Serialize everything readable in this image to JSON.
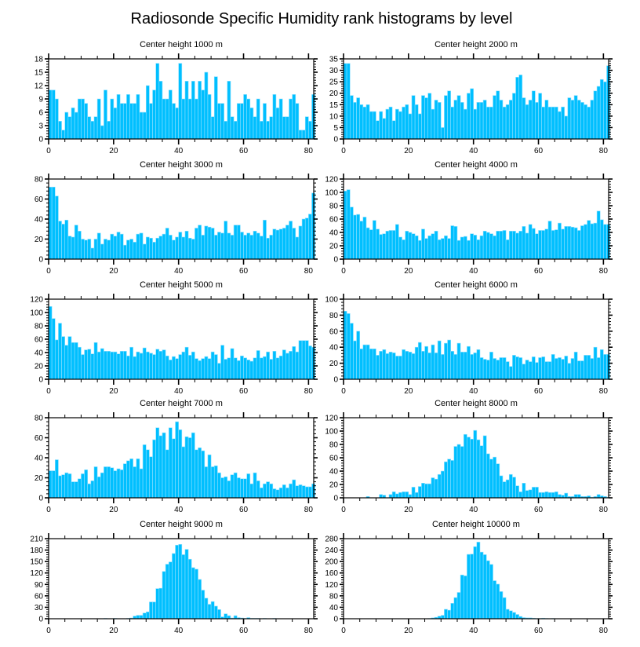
{
  "title": "Radiosonde Specific Humidity rank histograms by level",
  "chart_data": [
    {
      "type": "bar",
      "title": "Center height 1000 m",
      "xlim": [
        0,
        81.6
      ],
      "ylim": [
        0,
        18
      ],
      "yticks": [
        0,
        3,
        6,
        9,
        12,
        15,
        18
      ],
      "xticks": [
        0,
        20,
        40,
        60,
        80
      ],
      "values": [
        11,
        11,
        9,
        4,
        2,
        6,
        5,
        7,
        6,
        9,
        9,
        8,
        5,
        4,
        5,
        9,
        3,
        11,
        4,
        9,
        7,
        10,
        8,
        8,
        10,
        8,
        8,
        10,
        6,
        6,
        12,
        8,
        11,
        17,
        13,
        9,
        9,
        11,
        8,
        7,
        17,
        9,
        13,
        9,
        13,
        9,
        13,
        11,
        15,
        10,
        5,
        14,
        8,
        8,
        4,
        13,
        5,
        4,
        8,
        8,
        10,
        9,
        7,
        5,
        9,
        4,
        8,
        4,
        5,
        10,
        7,
        9,
        5,
        5,
        9,
        10,
        8,
        2,
        2,
        5,
        4,
        10
      ]
    },
    {
      "type": "bar",
      "title": "Center height 2000 m",
      "xlim": [
        0,
        81.6
      ],
      "ylim": [
        0,
        35
      ],
      "yticks": [
        0,
        5,
        10,
        15,
        20,
        25,
        30,
        35
      ],
      "xticks": [
        0,
        20,
        40,
        60,
        80
      ],
      "values": [
        33,
        33,
        19,
        16,
        18,
        15,
        14,
        15,
        12,
        12,
        8,
        12,
        9,
        13,
        14,
        8,
        13,
        12,
        14,
        15,
        11,
        19,
        15,
        11,
        19,
        18,
        20,
        13,
        17,
        16,
        5,
        19,
        21,
        14,
        17,
        19,
        16,
        13,
        20,
        22,
        13,
        16,
        16,
        17,
        14,
        14,
        19,
        21,
        17,
        14,
        15,
        17,
        20,
        27,
        28,
        18,
        15,
        17,
        21,
        16,
        20,
        14,
        17,
        14,
        14,
        14,
        12,
        14,
        10,
        18,
        17,
        19,
        17,
        16,
        15,
        14,
        17,
        21,
        23,
        26,
        25,
        32
      ]
    },
    {
      "type": "bar",
      "title": "Center height 3000 m",
      "xlim": [
        0,
        81.6
      ],
      "ylim": [
        0,
        80
      ],
      "yticks": [
        0,
        20,
        40,
        60,
        80
      ],
      "xticks": [
        0,
        20,
        40,
        60,
        80
      ],
      "values": [
        72,
        72,
        63,
        38,
        35,
        39,
        23,
        22,
        34,
        28,
        20,
        19,
        20,
        11,
        20,
        26,
        15,
        20,
        19,
        25,
        23,
        27,
        25,
        14,
        19,
        20,
        17,
        25,
        26,
        15,
        22,
        21,
        17,
        21,
        23,
        25,
        31,
        24,
        19,
        22,
        27,
        22,
        28,
        21,
        20,
        31,
        34,
        24,
        33,
        32,
        31,
        24,
        27,
        26,
        38,
        26,
        24,
        34,
        34,
        27,
        24,
        26,
        24,
        28,
        26,
        23,
        39,
        21,
        24,
        30,
        29,
        30,
        31,
        34,
        38,
        31,
        22,
        33,
        40,
        41,
        45,
        66
      ]
    },
    {
      "type": "bar",
      "title": "Center height 4000 m",
      "xlim": [
        0,
        81.6
      ],
      "ylim": [
        0,
        120
      ],
      "yticks": [
        0,
        20,
        40,
        60,
        80,
        100,
        120
      ],
      "xticks": [
        0,
        20,
        40,
        60,
        80
      ],
      "values": [
        102,
        104,
        78,
        66,
        67,
        57,
        63,
        47,
        44,
        58,
        45,
        37,
        38,
        42,
        43,
        43,
        52,
        33,
        29,
        42,
        40,
        38,
        35,
        28,
        45,
        31,
        35,
        38,
        42,
        29,
        31,
        35,
        31,
        50,
        49,
        28,
        33,
        34,
        28,
        38,
        36,
        29,
        35,
        42,
        40,
        38,
        35,
        42,
        42,
        43,
        29,
        42,
        42,
        39,
        42,
        49,
        39,
        52,
        46,
        38,
        43,
        43,
        45,
        57,
        43,
        44,
        54,
        45,
        49,
        49,
        48,
        47,
        43,
        50,
        52,
        58,
        53,
        54,
        72,
        59,
        52,
        52
      ]
    },
    {
      "type": "bar",
      "title": "Center height 5000 m",
      "xlim": [
        0,
        81.6
      ],
      "ylim": [
        0,
        120
      ],
      "yticks": [
        0,
        20,
        40,
        60,
        80,
        100,
        120
      ],
      "xticks": [
        0,
        20,
        40,
        60,
        80
      ],
      "values": [
        109,
        91,
        59,
        84,
        64,
        51,
        64,
        55,
        55,
        48,
        37,
        44,
        45,
        38,
        55,
        41,
        46,
        42,
        42,
        41,
        41,
        38,
        42,
        42,
        35,
        48,
        34,
        41,
        39,
        47,
        41,
        39,
        37,
        45,
        42,
        44,
        35,
        29,
        34,
        31,
        37,
        41,
        48,
        36,
        41,
        31,
        28,
        31,
        34,
        31,
        41,
        37,
        24,
        51,
        30,
        32,
        46,
        32,
        28,
        35,
        32,
        29,
        27,
        32,
        43,
        32,
        34,
        41,
        30,
        42,
        32,
        35,
        44,
        39,
        42,
        49,
        41,
        58,
        58,
        58,
        50,
        48
      ]
    },
    {
      "type": "bar",
      "title": "Center height 6000 m",
      "xlim": [
        0,
        81.6
      ],
      "ylim": [
        0,
        100
      ],
      "yticks": [
        0,
        20,
        40,
        60,
        80,
        100
      ],
      "xticks": [
        0,
        20,
        40,
        60,
        80
      ],
      "values": [
        85,
        82,
        70,
        48,
        60,
        38,
        43,
        43,
        38,
        38,
        30,
        35,
        37,
        32,
        34,
        33,
        29,
        29,
        37,
        35,
        34,
        32,
        40,
        46,
        35,
        41,
        33,
        43,
        33,
        48,
        31,
        45,
        49,
        35,
        31,
        45,
        34,
        34,
        41,
        31,
        33,
        37,
        27,
        25,
        24,
        34,
        26,
        24,
        27,
        27,
        22,
        16,
        30,
        28,
        27,
        19,
        24,
        22,
        28,
        21,
        27,
        28,
        22,
        22,
        31,
        26,
        27,
        25,
        29,
        20,
        26,
        34,
        23,
        23,
        30,
        30,
        26,
        40,
        27,
        37,
        31,
        31
      ]
    },
    {
      "type": "bar",
      "title": "Center height 7000 m",
      "xlim": [
        0,
        81.6
      ],
      "ylim": [
        0,
        80
      ],
      "yticks": [
        0,
        20,
        40,
        60,
        80
      ],
      "xticks": [
        0,
        20,
        40,
        60,
        80
      ],
      "values": [
        27,
        27,
        38,
        22,
        23,
        25,
        24,
        16,
        16,
        19,
        24,
        28,
        14,
        17,
        31,
        21,
        25,
        31,
        31,
        30,
        27,
        29,
        28,
        34,
        37,
        39,
        31,
        39,
        29,
        53,
        48,
        41,
        58,
        70,
        62,
        65,
        48,
        70,
        59,
        76,
        68,
        51,
        61,
        60,
        65,
        48,
        50,
        47,
        31,
        43,
        31,
        32,
        25,
        20,
        21,
        17,
        23,
        25,
        20,
        19,
        19,
        24,
        14,
        25,
        17,
        10,
        14,
        16,
        14,
        9,
        8,
        10,
        13,
        10,
        14,
        18,
        12,
        13,
        12,
        11,
        11,
        14
      ]
    },
    {
      "type": "bar",
      "title": "Center height 8000 m",
      "xlim": [
        0,
        81.6
      ],
      "ylim": [
        0,
        120
      ],
      "yticks": [
        0,
        20,
        40,
        60,
        80,
        100,
        120
      ],
      "xticks": [
        0,
        20,
        40,
        60,
        80
      ],
      "values": [
        0,
        0,
        0,
        0,
        0,
        0,
        0,
        2,
        0,
        0,
        0,
        5,
        4,
        0,
        5,
        9,
        6,
        8,
        9,
        9,
        5,
        16,
        8,
        17,
        22,
        21,
        21,
        30,
        28,
        35,
        40,
        54,
        58,
        56,
        77,
        80,
        77,
        95,
        91,
        88,
        101,
        87,
        78,
        93,
        66,
        58,
        61,
        51,
        33,
        24,
        27,
        35,
        31,
        18,
        9,
        22,
        11,
        12,
        16,
        16,
        8,
        8,
        9,
        8,
        8,
        9,
        5,
        4,
        7,
        2,
        2,
        5,
        5,
        2,
        2,
        3,
        1,
        2,
        5,
        3,
        2,
        1
      ]
    },
    {
      "type": "bar",
      "title": "Center height 9000 m",
      "xlim": [
        0,
        81.6
      ],
      "ylim": [
        0,
        210
      ],
      "yticks": [
        0,
        30,
        60,
        90,
        120,
        150,
        180,
        210
      ],
      "xticks": [
        0,
        20,
        40,
        60,
        80
      ],
      "values": [
        0,
        0,
        0,
        0,
        0,
        0,
        0,
        0,
        0,
        0,
        0,
        0,
        0,
        0,
        0,
        0,
        0,
        1,
        0,
        0,
        1,
        0,
        0,
        0,
        1,
        2,
        7,
        9,
        9,
        15,
        18,
        44,
        44,
        79,
        80,
        124,
        143,
        149,
        171,
        193,
        195,
        168,
        182,
        156,
        134,
        130,
        103,
        75,
        54,
        38,
        45,
        33,
        24,
        5,
        13,
        8,
        2,
        8,
        3,
        2,
        1,
        3,
        1,
        1,
        1,
        0,
        1,
        0,
        0,
        1,
        0,
        0,
        0,
        0,
        0,
        0,
        0,
        0,
        0,
        0,
        0,
        0
      ]
    },
    {
      "type": "bar",
      "title": "Center height 10000 m",
      "xlim": [
        0,
        81.6
      ],
      "ylim": [
        0,
        280
      ],
      "yticks": [
        0,
        40,
        80,
        120,
        160,
        200,
        240,
        280
      ],
      "xticks": [
        0,
        20,
        40,
        60,
        80
      ],
      "values": [
        0,
        0,
        0,
        0,
        0,
        0,
        0,
        0,
        0,
        0,
        0,
        0,
        0,
        0,
        0,
        0,
        0,
        0,
        0,
        0,
        0,
        0,
        0,
        0,
        0,
        0,
        1,
        3,
        5,
        9,
        12,
        33,
        30,
        54,
        74,
        92,
        153,
        150,
        225,
        226,
        252,
        268,
        233,
        224,
        203,
        190,
        133,
        121,
        95,
        74,
        33,
        28,
        22,
        15,
        8,
        4,
        3,
        3,
        2,
        1,
        1,
        2,
        1,
        0,
        1,
        0,
        0,
        0,
        0,
        0,
        0,
        0,
        0,
        0,
        0,
        0,
        0,
        0,
        0,
        0,
        0,
        0
      ]
    }
  ]
}
